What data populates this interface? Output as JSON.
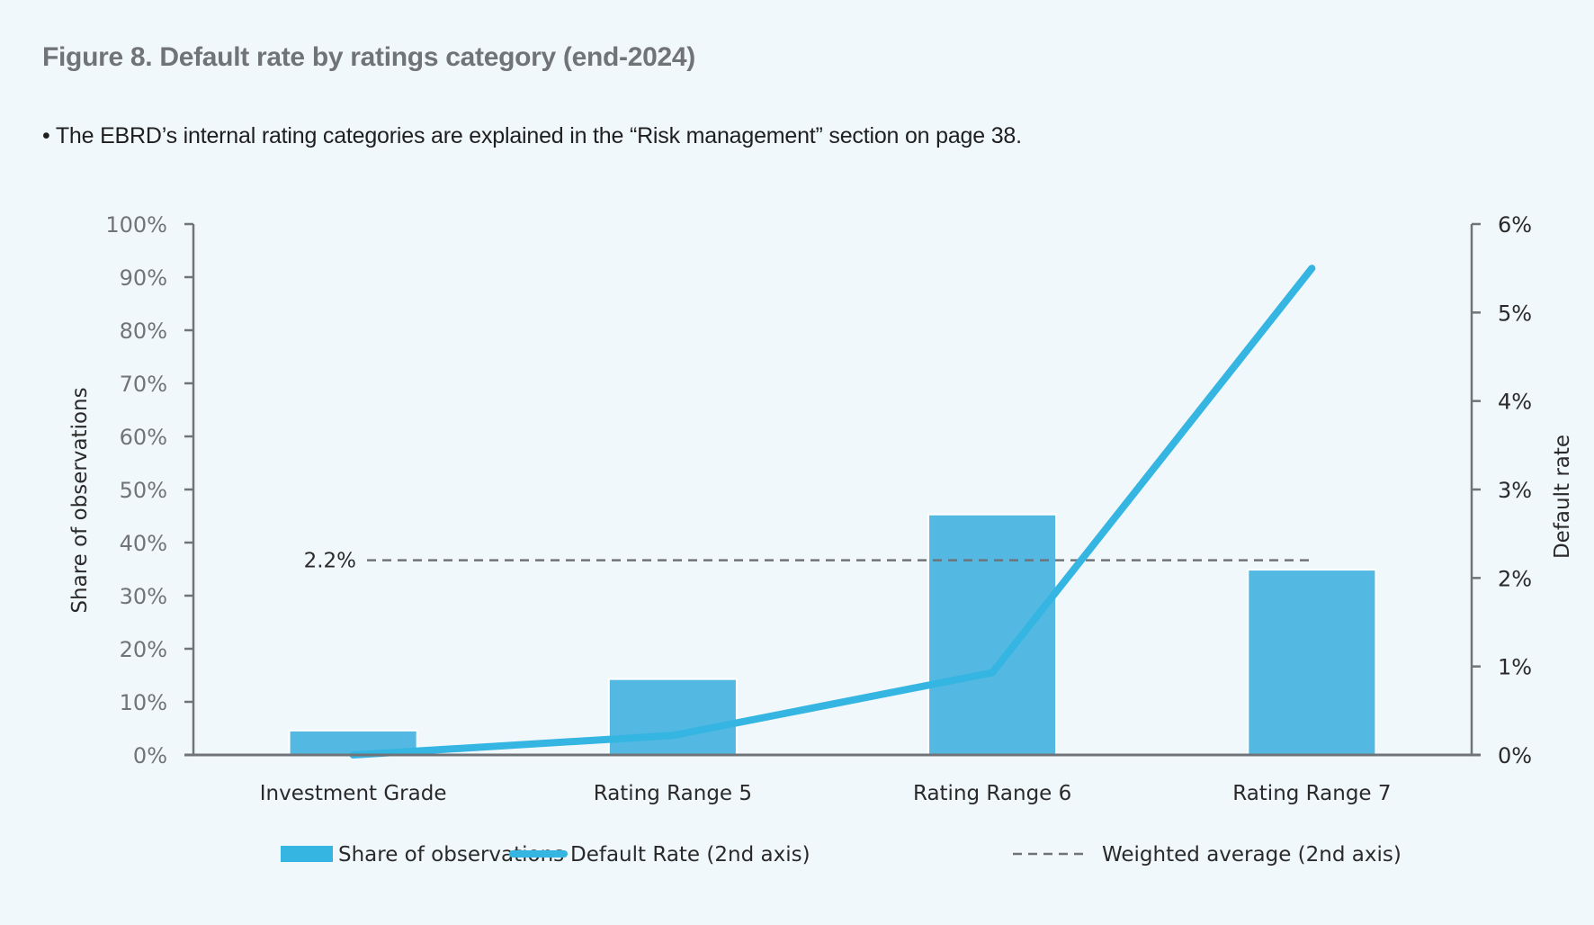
{
  "title": "Figure 8. Default rate by ratings category (end-2024)",
  "note": "• The EBRD’s internal rating categories are explained in the “Risk management” section on page 38.",
  "colors": {
    "background": "#F1F8FC",
    "bar": "#54B9E2",
    "line": "#35B5E1",
    "dashed": "#707377",
    "axis": "#707377"
  },
  "chart_data": {
    "type": "bar",
    "title": "Figure 8. Default rate by ratings category (end-2024)",
    "categories": [
      "Investment Grade",
      "Rating Range 5",
      "Rating Range 6",
      "Rating Range 7"
    ],
    "series": [
      {
        "name": "Share of observations",
        "type": "bar",
        "axis": "left",
        "values": [
          4.6,
          14.3,
          45.3,
          34.9
        ]
      },
      {
        "name": "Default Rate (2nd axis)",
        "type": "line",
        "axis": "right",
        "values": [
          0.0,
          0.22,
          0.93,
          5.5
        ]
      },
      {
        "name": "Weighted average (2nd axis)",
        "type": "dashed-line",
        "axis": "right",
        "value": 2.2
      }
    ],
    "ylabel": "Share of observations",
    "y2label": "Default rate",
    "ylim": [
      0,
      100
    ],
    "y2lim": [
      0,
      6
    ],
    "yticks": [
      "0%",
      "10%",
      "20%",
      "30%",
      "40%",
      "50%",
      "60%",
      "70%",
      "80%",
      "90%",
      "100%"
    ],
    "y2ticks": [
      "0%",
      "1%",
      "2%",
      "3%",
      "4%",
      "5%",
      "6%"
    ],
    "annotation": "2.2%",
    "grid": false,
    "legend": {
      "position": "bottom",
      "entries": [
        "Share of observations",
        "Default Rate (2nd axis)",
        "Weighted average (2nd axis)"
      ]
    }
  }
}
